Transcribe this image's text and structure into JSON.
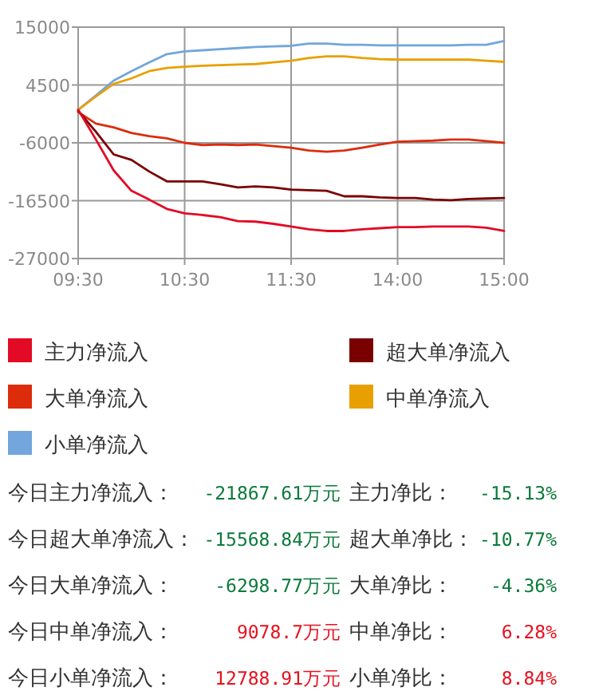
{
  "chart_data": {
    "type": "line",
    "categories": [
      "09:30",
      null,
      null,
      null,
      null,
      null,
      "10:30",
      null,
      null,
      null,
      null,
      null,
      "11:30",
      null,
      null,
      null,
      null,
      null,
      "14:00",
      null,
      null,
      null,
      null,
      null,
      "15:00"
    ],
    "ylim": [
      -27000,
      15000
    ],
    "yticks": [
      -27000,
      -16500,
      -6000,
      4500,
      15000
    ],
    "grid": true,
    "legend": "bottom",
    "marker": "none",
    "line_style": "solid",
    "series": [
      {
        "name": "主力净流入",
        "color": "#e30a25",
        "values": [
          0,
          -5400,
          -11000,
          -14700,
          -16300,
          -18000,
          -18800,
          -19100,
          -19500,
          -20200,
          -20300,
          -20700,
          -21200,
          -21700,
          -22000,
          -22000,
          -21700,
          -21500,
          -21300,
          -21300,
          -21200,
          -21200,
          -21200,
          -21400,
          -22000
        ]
      },
      {
        "name": "超大单净流入",
        "color": "#7a0000",
        "values": [
          -200,
          -4000,
          -8100,
          -9100,
          -11200,
          -13000,
          -13000,
          -13000,
          -13500,
          -14100,
          -13900,
          -14100,
          -14500,
          -14600,
          -14700,
          -15700,
          -15700,
          -15900,
          -16000,
          -16000,
          -16300,
          -16400,
          -16200,
          -16100,
          -16000
        ]
      },
      {
        "name": "大单净流入",
        "color": "#dc2c0c",
        "values": [
          -400,
          -2500,
          -3200,
          -4200,
          -4800,
          -5200,
          -6000,
          -6400,
          -6300,
          -6400,
          -6300,
          -6600,
          -6900,
          -7400,
          -7600,
          -7400,
          -6900,
          -6300,
          -5800,
          -5700,
          -5600,
          -5400,
          -5400,
          -5700,
          -6000
        ]
      },
      {
        "name": "中单净流入",
        "color": "#e8a000",
        "values": [
          0,
          2400,
          4700,
          5700,
          7000,
          7600,
          7800,
          8000,
          8100,
          8200,
          8300,
          8600,
          8900,
          9400,
          9700,
          9700,
          9400,
          9200,
          9100,
          9100,
          9100,
          9100,
          9100,
          8900,
          8700
        ]
      },
      {
        "name": "小单净流入",
        "color": "#72a6dc",
        "values": [
          0,
          2600,
          5300,
          7000,
          8600,
          10100,
          10600,
          10800,
          11000,
          11200,
          11400,
          11500,
          11600,
          12000,
          12000,
          11800,
          11800,
          11700,
          11700,
          11700,
          11700,
          11700,
          11800,
          11800,
          12500
        ]
      }
    ],
    "annotations": [
      "今日主力净流入：",
      "-21867.61万元",
      "主力净比：",
      "-15.13%",
      "今日超大单净流入：",
      "-15568.84万元",
      "超大单净比：",
      "-10.77%",
      "今日大单净流入：",
      "-6298.77万元",
      "大单净比：",
      "-4.36%",
      "今日中单净流入：",
      "9078.7万元",
      "中单净比：",
      "6.28%",
      "今日小单净流入：",
      "12788.91万元",
      "小单净比：",
      "8.84%"
    ]
  }
}
